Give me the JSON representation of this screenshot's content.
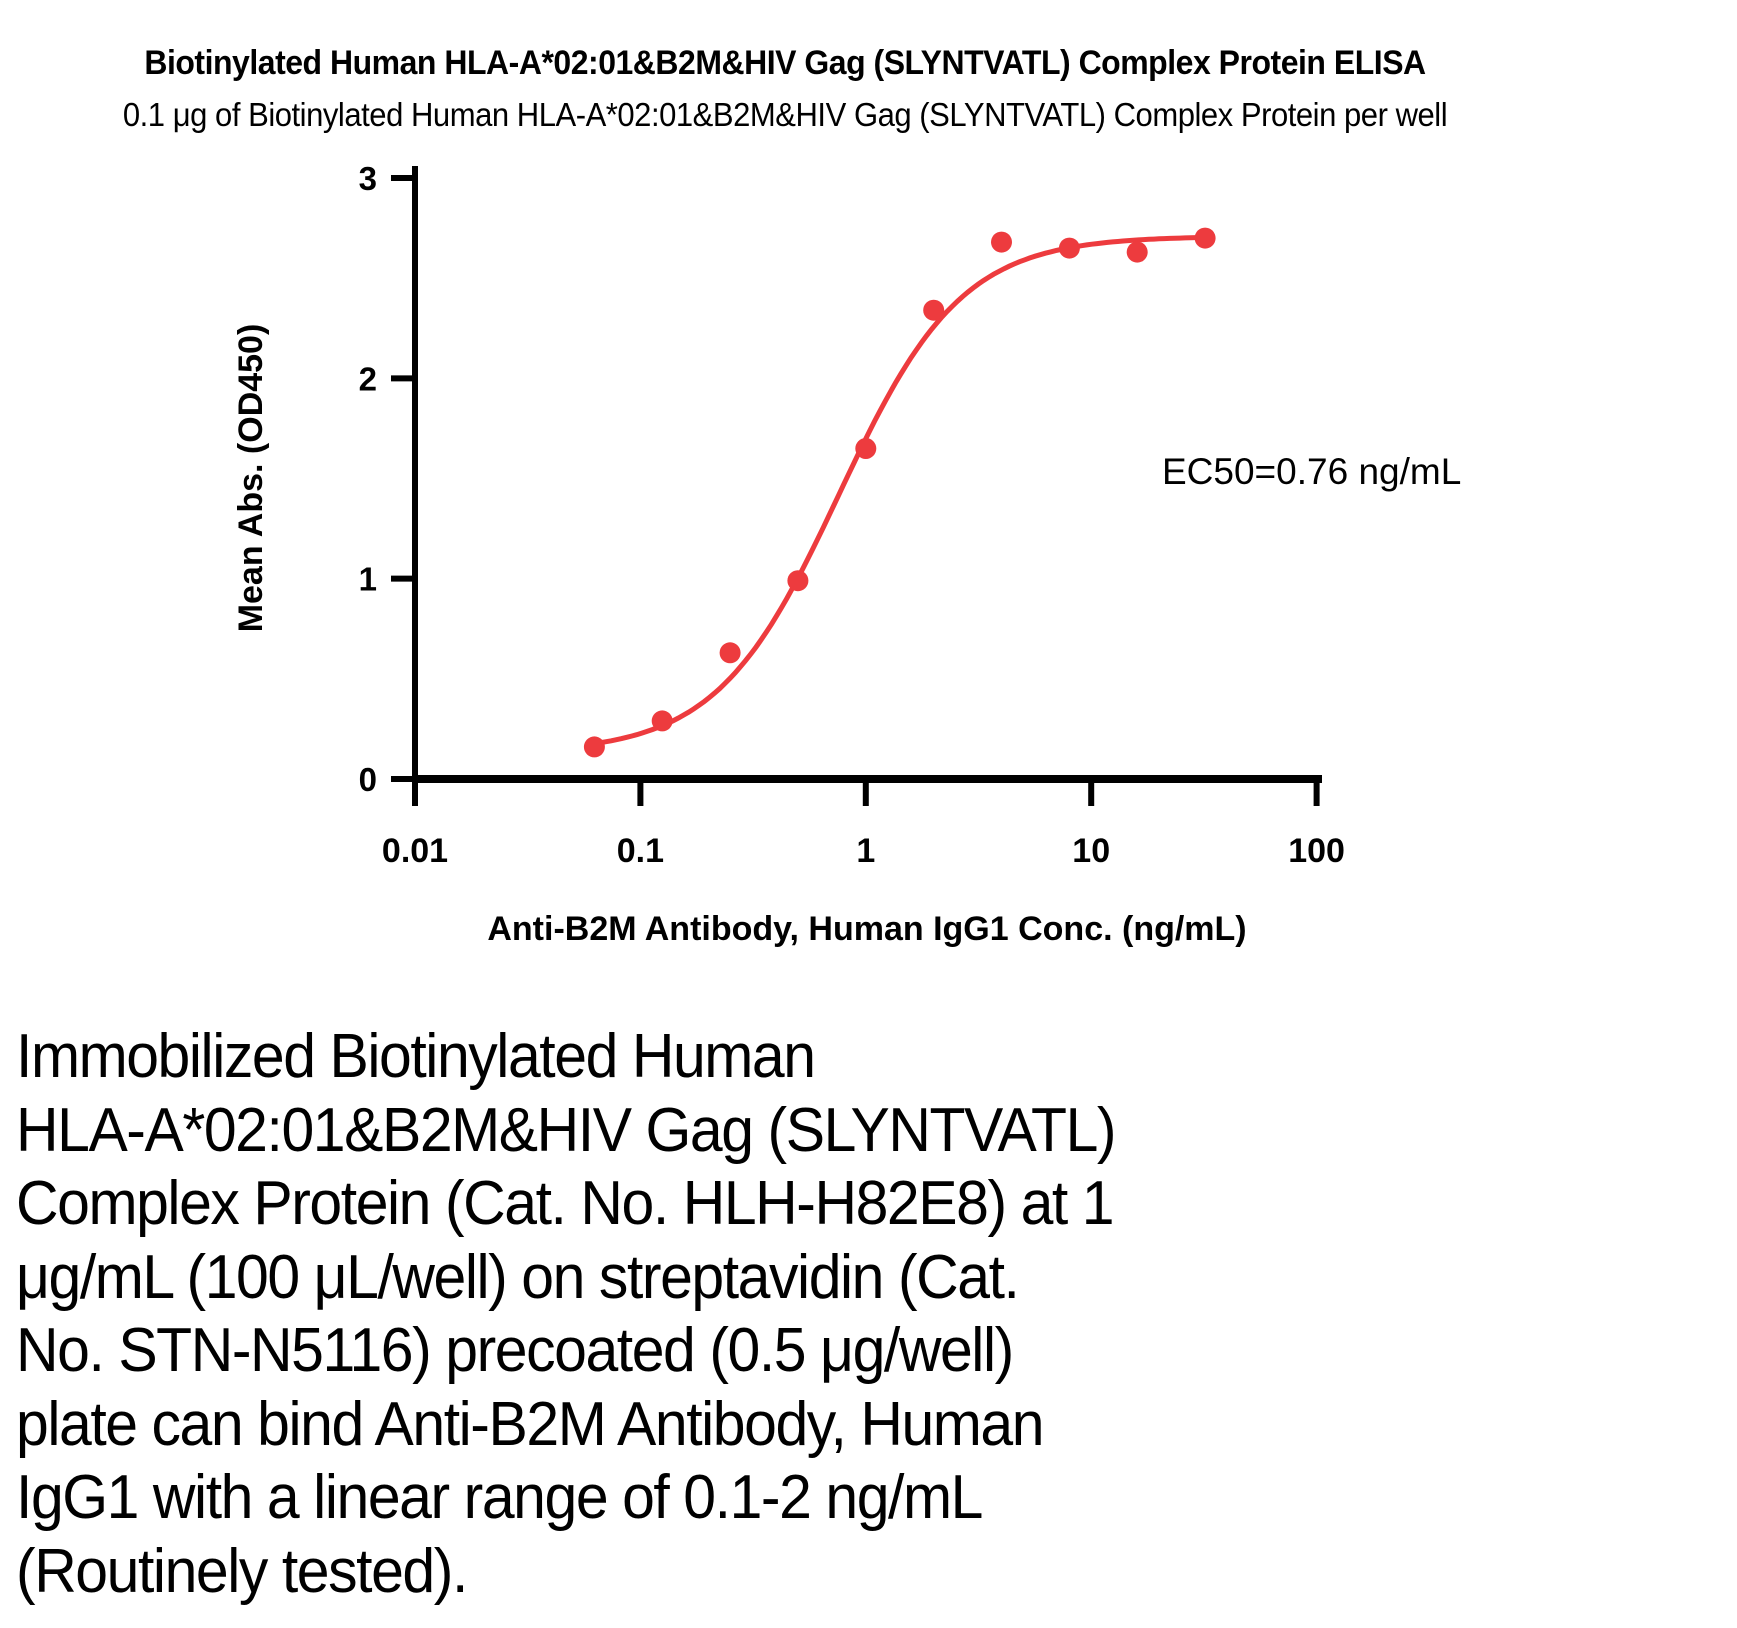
{
  "figure": {
    "title": "Biotinylated Human HLA-A*02:01&B2M&HIV Gag (SLYNTVATL) Complex Protein ELISA",
    "subtitle": "0.1 μg of Biotinylated Human HLA-A*02:01&B2M&HIV Gag (SLYNTVATL) Complex Protein per well"
  },
  "chart_data": {
    "type": "scatter",
    "x": [
      0.0625,
      0.125,
      0.25,
      0.5,
      1,
      2,
      4,
      8,
      16,
      32
    ],
    "y": [
      0.16,
      0.29,
      0.63,
      0.99,
      1.65,
      2.34,
      2.68,
      2.65,
      2.63,
      2.7
    ],
    "title": "Biotinylated Human HLA-A*02:01&B2M&HIV Gag (SLYNTVATL) Complex Protein ELISA",
    "xlabel": "Anti-B2M Antibody, Human IgG1 Conc. (ng/mL)",
    "ylabel": "Mean Abs. (OD450)",
    "xscale": "log",
    "xlim": [
      0.01,
      100
    ],
    "ylim": [
      0,
      3
    ],
    "x_tick_values": [
      0.01,
      0.1,
      1,
      10,
      100
    ],
    "x_tick_labels": [
      "0.01",
      "0.1",
      "1",
      "10",
      "100"
    ],
    "y_tick_values": [
      0,
      1,
      2,
      3
    ],
    "y_tick_labels": [
      "0",
      "1",
      "2",
      "3"
    ],
    "annotation": "EC50=0.76 ng/mL",
    "curve_fit": {
      "model": "4PL",
      "bottom": 0.13,
      "top": 2.71,
      "ec50": 0.76,
      "hill": 1.6,
      "x_start": 0.057,
      "x_end": 32.2
    },
    "marker_color": "#ED3B3E",
    "line_color": "#ED3B3E",
    "axis_color": "#000000",
    "grid": false,
    "legend": "none"
  },
  "caption": {
    "lines": [
      "Immobilized Biotinylated Human",
      "HLA-A*02:01&B2M&HIV Gag (SLYNTVATL)",
      "Complex Protein (Cat. No. HLH-H82E8) at 1",
      "μg/mL (100 μL/well) on streptavidin (Cat.",
      "No. STN-N5116) precoated (0.5 μg/well)",
      "plate can bind Anti-B2M Antibody, Human",
      "IgG1 with a linear range of 0.1-2 ng/mL",
      "(Routinely tested)."
    ]
  }
}
